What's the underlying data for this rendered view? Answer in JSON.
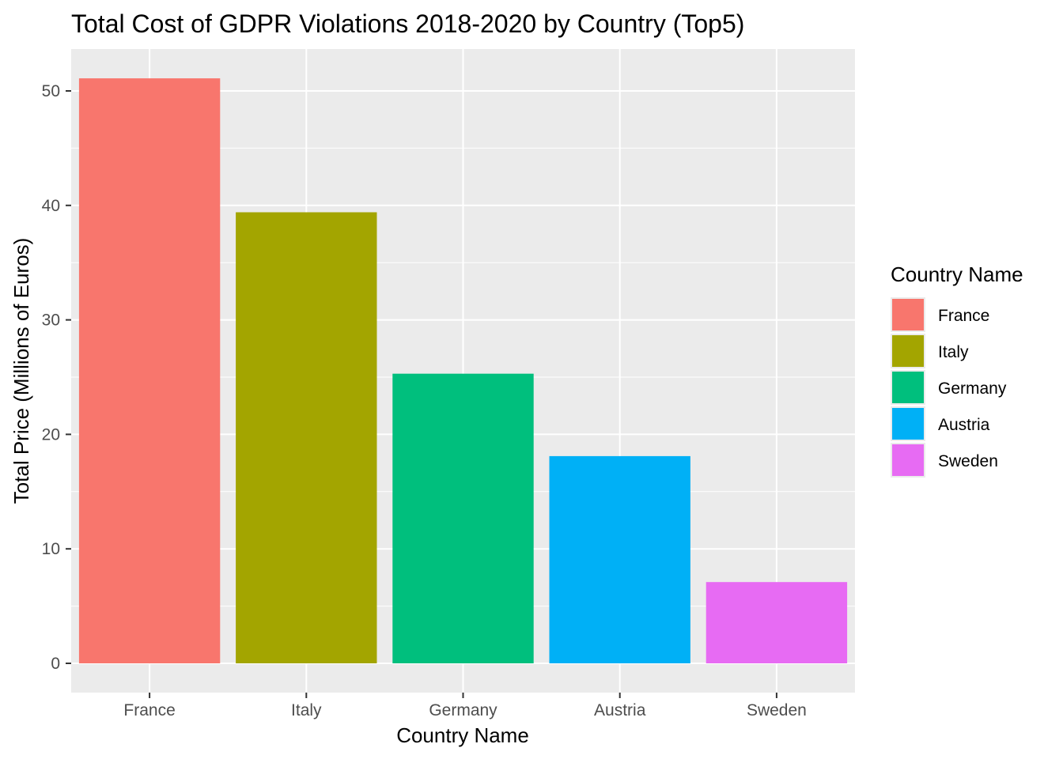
{
  "chart_data": {
    "type": "bar",
    "title": "Total Cost of GDPR Violations 2018-2020 by Country (Top5)",
    "xlabel": "Country Name",
    "ylabel": "Total Price (Millions of Euros)",
    "categories": [
      "France",
      "Italy",
      "Germany",
      "Austria",
      "Sweden"
    ],
    "values": [
      51.1,
      39.4,
      25.3,
      18.1,
      7.1
    ],
    "colors": [
      "#F8766D",
      "#A3A500",
      "#00BF7D",
      "#00B0F6",
      "#E76BF3"
    ],
    "ylim": [
      0,
      53.7
    ],
    "yticks": [
      0,
      10,
      20,
      30,
      40,
      50
    ],
    "yticks_labels": [
      "0",
      "10",
      "20",
      "30",
      "40",
      "50"
    ],
    "grid": true,
    "panel_background": "#EBEBEB",
    "legend": {
      "title": "Country Name",
      "placement": "right",
      "entries": [
        "France",
        "Italy",
        "Germany",
        "Austria",
        "Sweden"
      ]
    }
  }
}
